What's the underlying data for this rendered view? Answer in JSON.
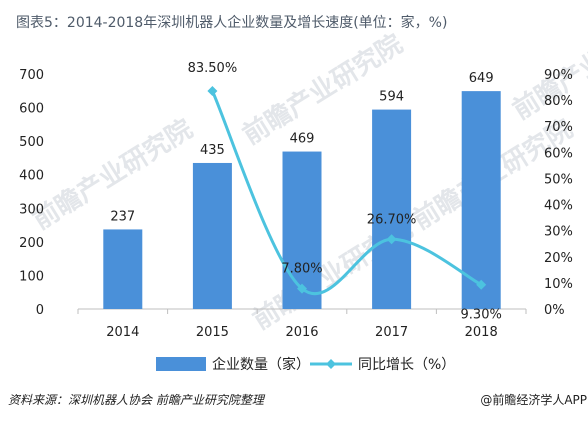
{
  "title": "图表5：2014-2018年深圳机器人企业数量及增长速度(单位：家，%)",
  "footer": {
    "source": "资料来源：深圳机器人协会 前瞻产业研究院整理",
    "credit": "@前瞻经济学人APP"
  },
  "watermark": "前瞻产业研究院",
  "colors": {
    "bar": "#4a90d9",
    "line": "#4cc3df",
    "title": "#4f5b6a",
    "grid": "#d9d9d9"
  },
  "chart_data": {
    "type": "bar",
    "categories": [
      "2014",
      "2015",
      "2016",
      "2017",
      "2018"
    ],
    "series": [
      {
        "name": "企业数量（家）",
        "type": "bar",
        "axis": "left",
        "values": [
          237,
          435,
          469,
          594,
          649
        ],
        "labels": [
          "237",
          "435",
          "469",
          "594",
          "649"
        ]
      },
      {
        "name": "同比增长（%）",
        "type": "line",
        "smooth": true,
        "axis": "right",
        "values": [
          null,
          83.5,
          7.8,
          26.7,
          9.3
        ],
        "labels": [
          "",
          "83.50%",
          "7.80%",
          "26.70%",
          "9.30%"
        ]
      }
    ],
    "y_left": {
      "min": 0,
      "max": 700,
      "ticks": [
        "0",
        "100",
        "200",
        "300",
        "400",
        "500",
        "600",
        "700"
      ]
    },
    "y_right": {
      "min": 0,
      "max": 90,
      "ticks": [
        "0%",
        "10%",
        "20%",
        "30%",
        "40%",
        "50%",
        "60%",
        "70%",
        "80%",
        "90%"
      ]
    },
    "grid": false,
    "legend_position": "bottom"
  }
}
